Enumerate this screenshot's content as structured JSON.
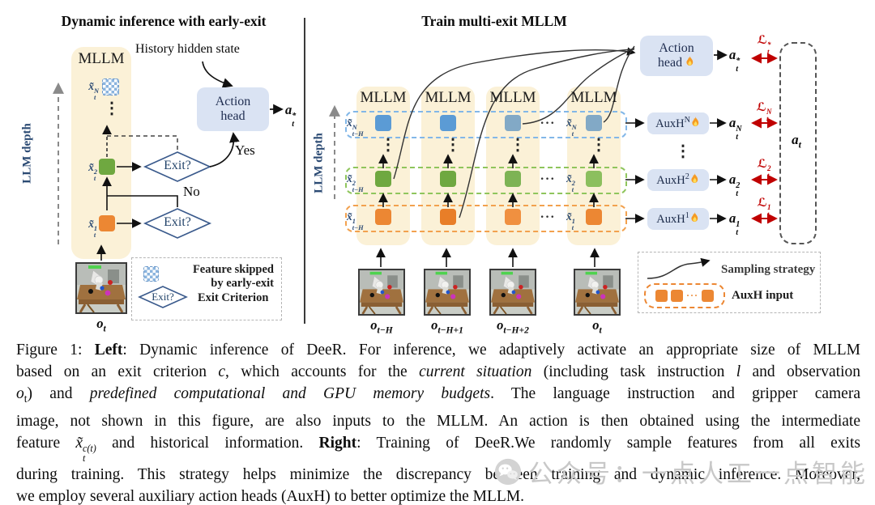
{
  "figure": {
    "left": {
      "title": "Dynamic inference with early-exit",
      "depth_axis": "LLM depth",
      "mllm": "MLLM",
      "x_n": [
        {
          "t": "x̃",
          "s": "i"
        },
        {
          "t": "N|t",
          "s": "supsub"
        }
      ],
      "x_2": [
        {
          "t": "x̃",
          "s": "i"
        },
        {
          "t": "2|t",
          "s": "supsub"
        }
      ],
      "x_1": [
        {
          "t": "x̃",
          "s": "i"
        },
        {
          "t": "1|t",
          "s": "supsub"
        }
      ],
      "exit": "Exit?",
      "yes": "Yes",
      "no": "No",
      "history": "History hidden state",
      "action_head_line1": "Action",
      "action_head_line2": "head",
      "a_star": [
        {
          "t": "a",
          "s": "bi"
        },
        {
          "t": "*|t",
          "s": "supsub"
        }
      ],
      "obs_label": [
        {
          "t": "o",
          "s": "bi"
        },
        {
          "t": "t",
          "s": "sub"
        }
      ],
      "legend": {
        "feature_line1": "Feature skipped",
        "feature_line2": "by early-exit",
        "exit": "Exit?",
        "exit_criterion": "Exit Criterion"
      }
    },
    "right": {
      "title": "Train multi-exit MLLM",
      "depth_axis": "LLM depth",
      "mllm": "MLLM",
      "rows": {
        "n_left": [
          {
            "t": "x̃",
            "s": "i"
          },
          {
            "t": "N|t−H",
            "s": "supsub"
          }
        ],
        "n_right": [
          {
            "t": "x̃",
            "s": "i"
          },
          {
            "t": "N|t",
            "s": "supsub"
          }
        ],
        "two_left": [
          {
            "t": "x̃",
            "s": "i"
          },
          {
            "t": "2|t−H",
            "s": "supsub"
          }
        ],
        "two_right": [
          {
            "t": "x̃",
            "s": "i"
          },
          {
            "t": "2|t",
            "s": "supsub"
          }
        ],
        "one_left": [
          {
            "t": "x̃",
            "s": "i"
          },
          {
            "t": "1|t−H",
            "s": "supsub"
          }
        ],
        "one_right": [
          {
            "t": "x̃",
            "s": "i"
          },
          {
            "t": "1|t",
            "s": "supsub"
          }
        ]
      },
      "action_head_line1": "Action",
      "action_head_line2": "head",
      "aux_n": [
        {
          "t": "AuxH"
        },
        {
          "t": "N",
          "s": "sup"
        }
      ],
      "aux_2": [
        {
          "t": "AuxH"
        },
        {
          "t": "2",
          "s": "sup"
        }
      ],
      "aux_1": [
        {
          "t": "AuxH"
        },
        {
          "t": "1",
          "s": "sup"
        }
      ],
      "a_star": [
        {
          "t": "a",
          "s": "bi"
        },
        {
          "t": "*|t",
          "s": "supsub"
        }
      ],
      "a_n": [
        {
          "t": "a",
          "s": "bi"
        },
        {
          "t": "N|t",
          "s": "supsub"
        }
      ],
      "a_2": [
        {
          "t": "a",
          "s": "bi"
        },
        {
          "t": "2|t",
          "s": "supsub"
        }
      ],
      "a_1": [
        {
          "t": "a",
          "s": "bi"
        },
        {
          "t": "1|t",
          "s": "supsub"
        }
      ],
      "loss_star": [
        {
          "t": "ℒ",
          "s": "cal"
        },
        {
          "t": "*|t",
          "s": "supsub"
        }
      ],
      "loss_n": [
        {
          "t": "ℒ",
          "s": "cal"
        },
        {
          "t": "N|t",
          "s": "supsub"
        }
      ],
      "loss_2": [
        {
          "t": "ℒ",
          "s": "cal"
        },
        {
          "t": "2|t",
          "s": "supsub"
        }
      ],
      "loss_1": [
        {
          "t": "ℒ",
          "s": "cal"
        },
        {
          "t": "1|t",
          "s": "supsub"
        }
      ],
      "a_target": [
        {
          "t": "a",
          "s": "bi"
        },
        {
          "t": "t",
          "s": "sub"
        }
      ],
      "obs_labels": {
        "o1": [
          {
            "t": "o",
            "s": "bi"
          },
          {
            "t": "t−H",
            "s": "sub"
          }
        ],
        "o2": [
          {
            "t": "o",
            "s": "bi"
          },
          {
            "t": "t−H+1",
            "s": "sub"
          }
        ],
        "o3": [
          {
            "t": "o",
            "s": "bi"
          },
          {
            "t": "t−H+2",
            "s": "sub"
          }
        ],
        "o4": [
          {
            "t": "o",
            "s": "bi"
          },
          {
            "t": "t",
            "s": "sub"
          }
        ]
      },
      "legend": {
        "sampling": "Sampling strategy",
        "auxh": "AuxH input"
      }
    }
  },
  "glyphs": {
    "vdots": "⋮",
    "hdots": "···"
  },
  "icons": {
    "trainable": "flame-icon",
    "watermark": "wechat-icon"
  },
  "caption": {
    "lines": [
      [
        {
          "t": "Figure 1: "
        },
        {
          "t": "Left",
          "s": "b"
        },
        {
          "t": ": Dynamic inference of DeeR. For inference, we adaptively activate an appropriate size of MLLM"
        }
      ],
      [
        {
          "t": "based on an exit criterion "
        },
        {
          "t": "c",
          "s": "i"
        },
        {
          "t": ", which accounts for the "
        },
        {
          "t": "current situation",
          "s": "i"
        },
        {
          "t": " (including task instruction "
        },
        {
          "t": "l",
          "s": "i"
        },
        {
          "t": " and observation"
        }
      ],
      [
        {
          "t": "o",
          "s": "i"
        },
        {
          "t": "t",
          "s": "sub"
        },
        {
          "t": ") and "
        },
        {
          "t": "predefined computational and GPU memory budgets",
          "s": "i"
        },
        {
          "t": ". The language instruction and gripper camera"
        }
      ],
      [
        {
          "t": "image, not shown in this figure, are also inputs to the MLLM. An action is then obtained using the intermediate"
        }
      ],
      [
        {
          "t": "feature "
        },
        {
          "t": "x̃",
          "s": "i"
        },
        {
          "t": "c(t)|t",
          "s": "supsub"
        },
        {
          "t": " and historical information. "
        },
        {
          "t": "Right",
          "s": "b"
        },
        {
          "t": ": Training of DeeR.We randomly sample features from all exits"
        }
      ],
      [
        {
          "t": "during training. This strategy helps minimize the discrepancy between training and dynamic inference. Moreover,"
        }
      ],
      [
        {
          "t": "we employ several auxiliary action heads (AuxH) to better optimize the MLLM."
        }
      ]
    ]
  },
  "watermark": {
    "text": "公众号：一点人工一点智能"
  },
  "colors": {
    "cream": "#FBF1D7",
    "square_green": "#6FA840",
    "square_orange": "#EC8733",
    "square_blue": "#5B9BD5",
    "square_blue_muted": "#82A9C6",
    "row_blue": "#82B7E8",
    "row_green": "#8FC55C",
    "row_orange": "#F2A14E",
    "action_box": "#DAE3F3",
    "loss_red": "#C00000",
    "diamond_stroke": "#3A5A8C",
    "navy": "#2B4A73"
  }
}
